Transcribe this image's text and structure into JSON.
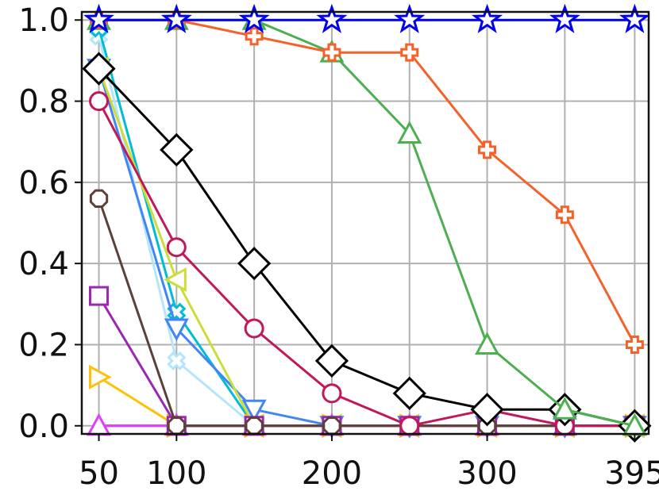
{
  "chart_data": {
    "type": "line",
    "title": "",
    "xlabel": "",
    "ylabel": "",
    "xlim": [
      39,
      404
    ],
    "ylim": [
      -0.02,
      1.02
    ],
    "x_ticks": [
      "50",
      "100",
      "200",
      "300",
      "395"
    ],
    "x_tick_values": [
      50,
      100,
      200,
      300,
      395
    ],
    "y_ticks": [
      "0.0",
      "0.2",
      "0.4",
      "0.6",
      "0.8",
      "1.0"
    ],
    "y_tick_values": [
      0.0,
      0.2,
      0.4,
      0.6,
      0.8,
      1.0
    ],
    "grid": true,
    "legend": "none",
    "x": [
      50,
      100,
      150,
      200,
      250,
      300,
      350,
      395
    ],
    "series": [
      {
        "marker": "star",
        "color": "#0000ee",
        "values": [
          1.0,
          1.0,
          1.0,
          1.0,
          1.0,
          1.0,
          1.0,
          1.0
        ]
      },
      {
        "marker": "plus",
        "color": "#f4622a",
        "values": [
          1.0,
          1.0,
          0.96,
          0.92,
          0.92,
          0.68,
          0.52,
          0.2
        ]
      },
      {
        "marker": "triangle-up",
        "color": "#4caf50",
        "values": [
          1.0,
          1.0,
          1.0,
          0.92,
          0.72,
          0.2,
          0.04,
          0.0
        ]
      },
      {
        "marker": "diamond",
        "color": "#000000",
        "values": [
          0.88,
          0.68,
          0.4,
          0.16,
          0.08,
          0.04,
          0.04,
          0.0
        ]
      },
      {
        "marker": "circle",
        "color": "#c2185b",
        "values": [
          0.8,
          0.44,
          0.24,
          0.08,
          0.0,
          0.04,
          0.0,
          0.0
        ]
      },
      {
        "marker": "octagon",
        "color": "#5d4037",
        "values": [
          0.56,
          0.0,
          0.0,
          0.0,
          0.0,
          0.0,
          0.0,
          0.0
        ]
      },
      {
        "marker": "square",
        "color": "#9c27b0",
        "values": [
          0.32,
          0.0,
          0.0,
          0.0,
          0.0,
          0.0,
          0.0,
          0.0
        ]
      },
      {
        "marker": "triangle-right",
        "color": "#ffc107",
        "values": [
          0.12,
          0.0,
          0.0,
          0.0,
          0.0,
          0.0,
          0.0,
          0.0
        ]
      },
      {
        "marker": "triangle-left",
        "color": "#cddc39",
        "values": [
          0.88,
          0.36,
          0.0,
          0.0,
          0.0,
          0.0,
          0.0,
          0.0
        ]
      },
      {
        "marker": "triangle-down",
        "color": "#4285f4",
        "values": [
          0.88,
          0.24,
          0.04,
          0.0,
          0.0,
          0.0,
          0.0,
          0.0
        ]
      },
      {
        "marker": "x",
        "color": "#00bcd4",
        "values": [
          0.98,
          0.28,
          0.0,
          0.0,
          0.0,
          0.0,
          0.0,
          0.0
        ]
      },
      {
        "marker": "x",
        "color": "#b3e5fc",
        "values": [
          0.96,
          0.16,
          0.0,
          0.0,
          0.0,
          0.0,
          0.0,
          0.0
        ]
      },
      {
        "marker": "triangle-up",
        "color": "#e040fb",
        "values": [
          0.0,
          0.0,
          0.0,
          0.0,
          0.0,
          0.0,
          0.0,
          0.0
        ]
      },
      {
        "marker": "circle-small",
        "color": "#7b68ee",
        "values": [
          0.0,
          0.0,
          0.0,
          0.0,
          0.0,
          0.0,
          0.0,
          0.0
        ]
      },
      {
        "marker": "none",
        "color": "#607d8b",
        "values": [
          0.0,
          0.0,
          0.0,
          0.0,
          0.0,
          0.0,
          0.0,
          0.0
        ]
      }
    ]
  }
}
